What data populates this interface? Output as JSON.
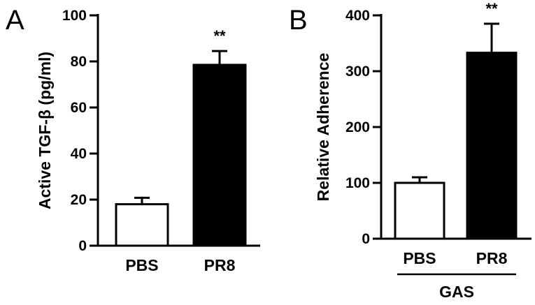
{
  "chart_data": [
    {
      "type": "bar",
      "panel_label": "A",
      "ylabel": "Active TGF-β (pg/ml)",
      "categories": [
        "PBS",
        "PR8"
      ],
      "values": [
        18,
        78.5
      ],
      "errors": [
        2.8,
        6
      ],
      "bar_fills": [
        "#ffffff",
        "#000000"
      ],
      "significance": [
        "",
        "**"
      ],
      "ylim": [
        0,
        100
      ],
      "yticks": [
        0,
        20,
        40,
        60,
        80,
        100
      ],
      "grid": false
    },
    {
      "type": "bar",
      "panel_label": "B",
      "ylabel": "Relative Adherence",
      "categories": [
        "PBS",
        "PR8"
      ],
      "values": [
        100,
        333
      ],
      "errors": [
        10,
        52
      ],
      "bar_fills": [
        "#ffffff",
        "#000000"
      ],
      "significance": [
        "",
        "**"
      ],
      "group_label": "GAS",
      "ylim": [
        0,
        400
      ],
      "yticks": [
        0,
        100,
        200,
        300,
        400
      ],
      "grid": false
    }
  ]
}
